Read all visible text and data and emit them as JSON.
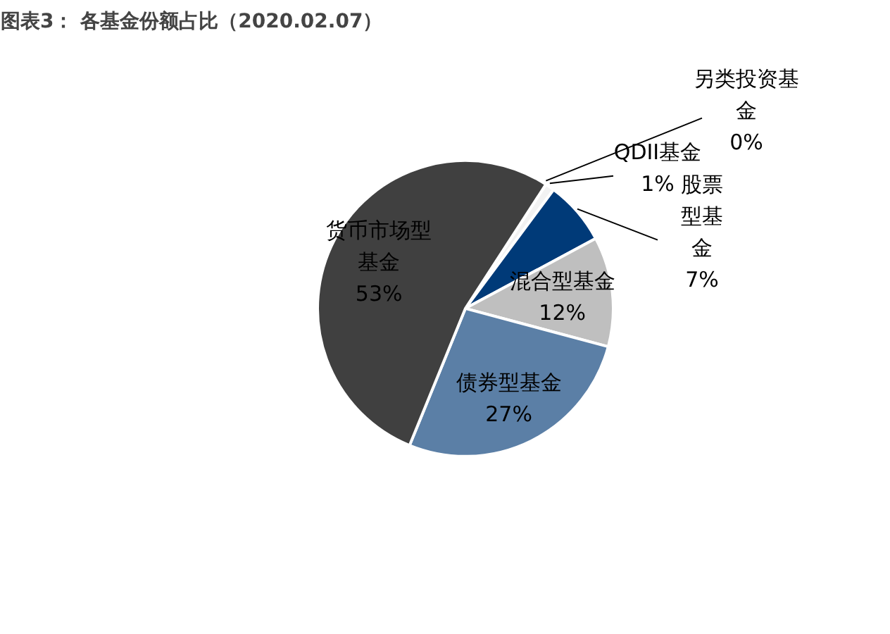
{
  "chart_data": {
    "type": "pie",
    "title": "图表3： 各基金份额占比（2020.02.07）",
    "categories": [
      "另类投资基金",
      "QDII基金",
      "股票型基金",
      "混合型基金",
      "债券型基金",
      "货币市场型基金"
    ],
    "values": [
      0,
      1,
      7,
      12,
      27,
      53
    ],
    "colors": [
      "#d9d9d9",
      "#f2f2f2",
      "#003a78",
      "#bfbfbf",
      "#5b7fa6",
      "#404040"
    ],
    "value_labels": [
      "0%",
      "1%",
      "7%",
      "12%",
      "27%",
      "53%"
    ]
  }
}
